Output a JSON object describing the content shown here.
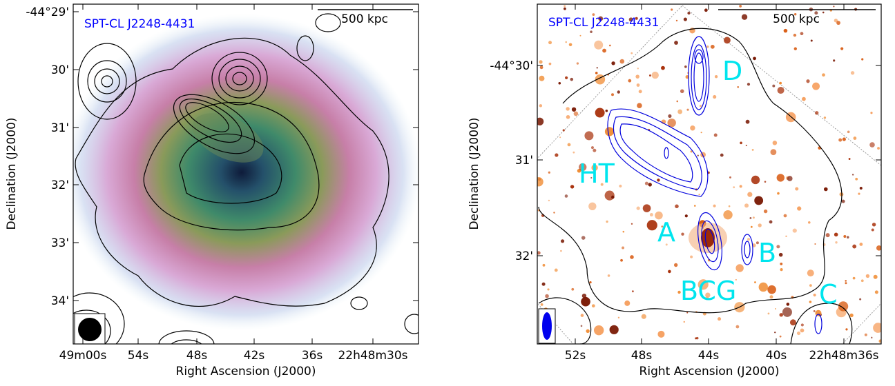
{
  "panels": [
    {
      "title": "SPT-CL J2248-4431",
      "scale_bar": "500 kpc",
      "x_label": "Right Ascension (J2000)",
      "y_label": "Declination (J2000)",
      "x_ticks": [
        "49m00s",
        "54s",
        "48s",
        "42s",
        "36s",
        "22h48m30s"
      ],
      "y_ticks": [
        "-44°29'",
        "30'",
        "31'",
        "32'",
        "33'",
        "34'"
      ]
    },
    {
      "title": "SPT-CL J2248-4431",
      "scale_bar": "500 kpc",
      "x_label": "Right Ascension (J2000)",
      "y_label": "Declination (J2000)",
      "x_ticks": [
        "52s",
        "48s",
        "44s",
        "40s",
        "22h48m36s"
      ],
      "y_ticks": [
        "-44°30'",
        "31'",
        "32'"
      ],
      "annotations": [
        "D",
        "HT",
        "A",
        "B",
        "BCG",
        "C"
      ]
    }
  ]
}
